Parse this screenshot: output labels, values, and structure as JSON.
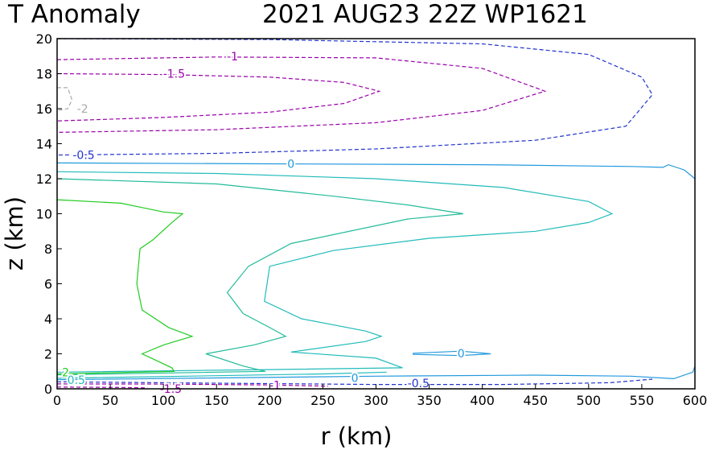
{
  "chart_data": {
    "type": "contour",
    "title_left": "T Anomaly",
    "title_right": "2021 AUG23 22Z   WP1621",
    "xlabel": "r (km)",
    "ylabel": "z (km)",
    "xlim": [
      0,
      600
    ],
    "ylim": [
      0,
      20
    ],
    "x_ticks": [
      0,
      50,
      100,
      150,
      200,
      250,
      300,
      350,
      400,
      450,
      500,
      550,
      600
    ],
    "y_ticks": [
      0,
      2,
      4,
      6,
      8,
      10,
      12,
      14,
      16,
      18,
      20
    ],
    "contours": [
      {
        "level": -2,
        "label": "-2",
        "color": "#aaaaaa",
        "dashed": true,
        "points": [
          [
            0,
            17.2
          ],
          [
            10,
            17.2
          ],
          [
            14,
            16.5
          ],
          [
            10,
            16.0
          ],
          [
            0,
            15.9
          ]
        ],
        "label_at": [
          24,
          16.0
        ]
      },
      {
        "level": -1.5,
        "label": "-1.5",
        "color": "#9900aa",
        "dashed": true,
        "points": [
          [
            0,
            18.0
          ],
          [
            100,
            17.95
          ],
          [
            200,
            17.8
          ],
          [
            270,
            17.5
          ],
          [
            303,
            17.0
          ],
          [
            270,
            16.3
          ],
          [
            200,
            15.8
          ],
          [
            100,
            15.5
          ],
          [
            0,
            15.3
          ]
        ],
        "label_at": [
          110,
          18.0
        ]
      },
      {
        "level": -1,
        "label": "-1",
        "color": "#9900aa",
        "dashed": true,
        "points": [
          [
            0,
            18.8
          ],
          [
            150,
            18.95
          ],
          [
            300,
            18.9
          ],
          [
            400,
            18.3
          ],
          [
            459,
            17.0
          ],
          [
            400,
            15.9
          ],
          [
            300,
            15.2
          ],
          [
            150,
            14.8
          ],
          [
            0,
            14.65
          ]
        ],
        "label_at": [
          165,
          19.0
        ]
      },
      {
        "level": -0.5,
        "label": "-0.5",
        "color": "#2233cc",
        "dashed": true,
        "points": [
          [
            0,
            20.0
          ],
          [
            200,
            19.95
          ],
          [
            400,
            19.7
          ],
          [
            500,
            19.1
          ],
          [
            550,
            17.8
          ],
          [
            560,
            16.8
          ],
          [
            535,
            15.0
          ],
          [
            450,
            14.2
          ],
          [
            300,
            13.7
          ],
          [
            150,
            13.45
          ],
          [
            0,
            13.35
          ]
        ],
        "label_at": [
          25,
          13.35
        ]
      },
      {
        "level": 0,
        "label": "0",
        "color": "#2299dd",
        "dashed": false,
        "points": [
          [
            0,
            12.9
          ],
          [
            200,
            12.85
          ],
          [
            400,
            12.8
          ],
          [
            540,
            12.7
          ],
          [
            570,
            12.65
          ],
          [
            575,
            12.8
          ],
          [
            590,
            12.5
          ],
          [
            600,
            12.0
          ]
        ],
        "label_at": [
          220,
          12.85
        ]
      },
      {
        "level": 0.5,
        "label": "",
        "color": "#22bbbb",
        "dashed": false,
        "points": [
          [
            0,
            12.4
          ],
          [
            150,
            12.3
          ],
          [
            300,
            12.0
          ],
          [
            420,
            11.5
          ],
          [
            500,
            10.7
          ],
          [
            522,
            10.0
          ],
          [
            500,
            9.5
          ],
          [
            450,
            9.0
          ],
          [
            350,
            8.6
          ],
          [
            260,
            7.9
          ],
          [
            200,
            7.0
          ],
          [
            195,
            5.0
          ],
          [
            230,
            4.0
          ],
          [
            290,
            3.3
          ],
          [
            305,
            3.0
          ],
          [
            290,
            2.7
          ],
          [
            220,
            2.1
          ],
          [
            300,
            1.75
          ],
          [
            325,
            1.2
          ],
          [
            200,
            1.1
          ],
          [
            0,
            0.95
          ]
        ]
      },
      {
        "level": 1,
        "label": "",
        "color": "#22bb99",
        "dashed": false,
        "points": [
          [
            0,
            12.0
          ],
          [
            150,
            11.7
          ],
          [
            260,
            11.0
          ],
          [
            330,
            10.5
          ],
          [
            382,
            10.0
          ],
          [
            330,
            9.7
          ],
          [
            220,
            8.3
          ],
          [
            180,
            7.0
          ],
          [
            160,
            5.5
          ],
          [
            175,
            4.3
          ],
          [
            200,
            3.5
          ],
          [
            215,
            3.0
          ],
          [
            185,
            2.5
          ],
          [
            140,
            2.0
          ],
          [
            175,
            1.3
          ],
          [
            196,
            1.0
          ],
          [
            0,
            0.8
          ]
        ]
      },
      {
        "level": 2,
        "label": "2",
        "color": "#22cc22",
        "dashed": false,
        "points": [
          [
            0,
            10.8
          ],
          [
            60,
            10.6
          ],
          [
            100,
            10.1
          ],
          [
            118,
            10.0
          ],
          [
            108,
            9.5
          ],
          [
            90,
            8.5
          ],
          [
            78,
            8.0
          ],
          [
            75,
            6.0
          ],
          [
            80,
            4.5
          ],
          [
            105,
            3.5
          ],
          [
            127,
            3.0
          ],
          [
            100,
            2.5
          ],
          [
            80,
            2.0
          ],
          [
            108,
            1.2
          ],
          [
            110,
            1.0
          ],
          [
            0,
            0.85
          ]
        ],
        "label_at": [
          8,
          0.95
        ]
      },
      {
        "level": 0,
        "label": "0",
        "color": "#2299dd",
        "dashed": false,
        "points": [
          [
            0,
            0.52
          ],
          [
            150,
            0.62
          ],
          [
            300,
            0.72
          ],
          [
            450,
            0.78
          ],
          [
            540,
            0.72
          ],
          [
            580,
            0.58
          ],
          [
            598,
            0.95
          ],
          [
            600,
            1.3
          ]
        ],
        "label_at": [
          280,
          0.62
        ]
      },
      {
        "level": 0,
        "label": "0",
        "color": "#2299dd",
        "dashed": false,
        "closed": true,
        "points": [
          [
            335,
            2.03
          ],
          [
            380,
            2.15
          ],
          [
            408,
            2.0
          ],
          [
            380,
            1.9
          ],
          [
            335,
            1.97
          ]
        ],
        "label_at": [
          380,
          2.03
        ]
      },
      {
        "level": 0.5,
        "label": "0.5",
        "color": "#22bbbb",
        "dashed": false,
        "points": [
          [
            0,
            0.6
          ],
          [
            150,
            0.75
          ],
          [
            250,
            0.85
          ],
          [
            310,
            0.95
          ]
        ],
        "label_at": [
          18,
          0.5
        ]
      },
      {
        "level": -0.5,
        "label": "-0.5",
        "color": "#2233cc",
        "dashed": true,
        "points": [
          [
            0,
            0.4
          ],
          [
            150,
            0.32
          ],
          [
            300,
            0.25
          ],
          [
            420,
            0.25
          ],
          [
            520,
            0.35
          ],
          [
            560,
            0.55
          ]
        ],
        "label_at": [
          340,
          0.33
        ]
      },
      {
        "level": -1,
        "label": "-1",
        "color": "#9900aa",
        "dashed": true,
        "points": [
          [
            0,
            0.28
          ],
          [
            100,
            0.27
          ],
          [
            200,
            0.22
          ],
          [
            255,
            0.15
          ]
        ],
        "label_at": [
          205,
          0.2
        ]
      },
      {
        "level": -1.5,
        "label": "-1.5",
        "color": "#9900aa",
        "dashed": true,
        "points": [
          [
            0,
            0.1
          ],
          [
            60,
            0.08
          ],
          [
            85,
            0.05
          ]
        ],
        "label_at": [
          107,
          0.0
        ]
      }
    ]
  }
}
